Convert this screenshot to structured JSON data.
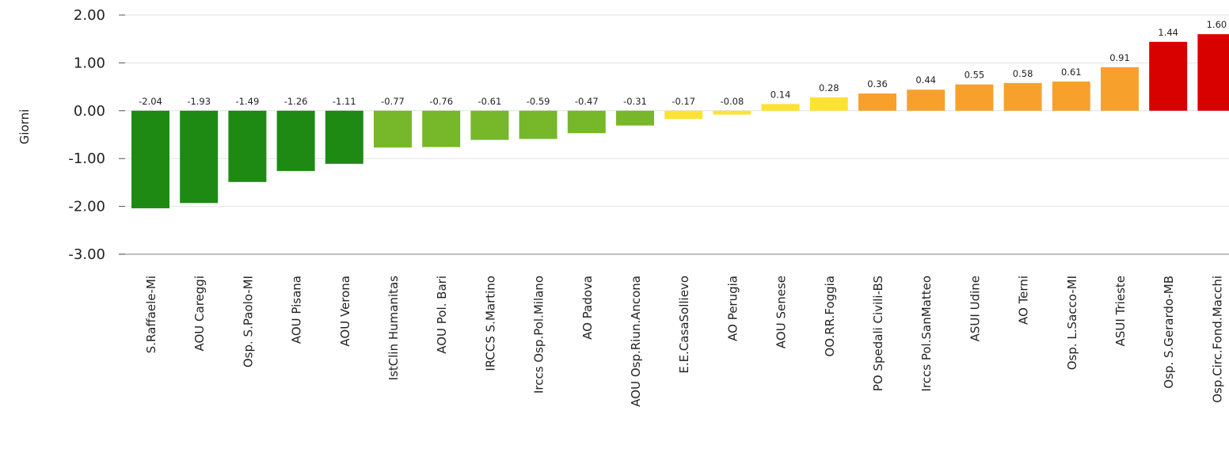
{
  "chart_data": {
    "type": "bar",
    "ylabel": "Giorni",
    "ylim": [
      -3,
      2
    ],
    "yticks": [
      2,
      1,
      0,
      -1,
      -2,
      -3
    ],
    "ytick_labels": [
      "2.00",
      "1.00",
      "0.00",
      "-1.00",
      "-2.00",
      "-3.00"
    ],
    "grid": true,
    "categories": [
      "S.Raffaele-Mi",
      "AOU Careggi",
      "Osp. S.Paolo-MI",
      "AOU Pisana",
      "AOU Verona",
      "IstClin Humanitas",
      "AOU Pol. Bari",
      "IRCCS S.Martino",
      "Irccs Osp.Pol.Milano",
      "AO Padova",
      "AOU Osp.Riun.Ancona",
      "E.E.CasaSollievo",
      "AO Perugia",
      "AOU Senese",
      "OO.RR.Foggia",
      "PO Spedali Civili-BS",
      "Irccs Pol.SanMatteo",
      "ASUI Udine",
      "AO Terni",
      "Osp. L.Sacco-MI",
      "ASUI Trieste",
      "Osp. S.Gerardo-MB",
      "Osp.Circ.Fond.Macchi"
    ],
    "values": [
      -2.04,
      -1.93,
      -1.49,
      -1.26,
      -1.11,
      -0.77,
      -0.76,
      -0.61,
      -0.59,
      -0.47,
      -0.31,
      -0.17,
      -0.08,
      0.14,
      0.28,
      0.36,
      0.44,
      0.55,
      0.58,
      0.61,
      0.91,
      1.44,
      1.6
    ],
    "value_labels": [
      "-2.04",
      "-1.93",
      "-1.49",
      "-1.26",
      "-1.11",
      "-0.77",
      "-0.76",
      "-0.61",
      "-0.59",
      "-0.47",
      "-0.31",
      "-0.17",
      "-0.08",
      "0.14",
      "0.28",
      "0.36",
      "0.44",
      "0.55",
      "0.58",
      "0.61",
      "0.91",
      "1.44",
      "1.60"
    ],
    "bar_colors": [
      "#1e8a14",
      "#1e8a14",
      "#1e8a14",
      "#1e8a14",
      "#1e8a14",
      "#76b82a",
      "#76b82a",
      "#76b82a",
      "#76b82a",
      "#76b82a",
      "#76b82a",
      "#fde234",
      "#fde234",
      "#fde234",
      "#fde234",
      "#f7a12c",
      "#f7a12c",
      "#f7a12c",
      "#f7a12c",
      "#f7a12c",
      "#f7a12c",
      "#d90000",
      "#d90000"
    ]
  }
}
